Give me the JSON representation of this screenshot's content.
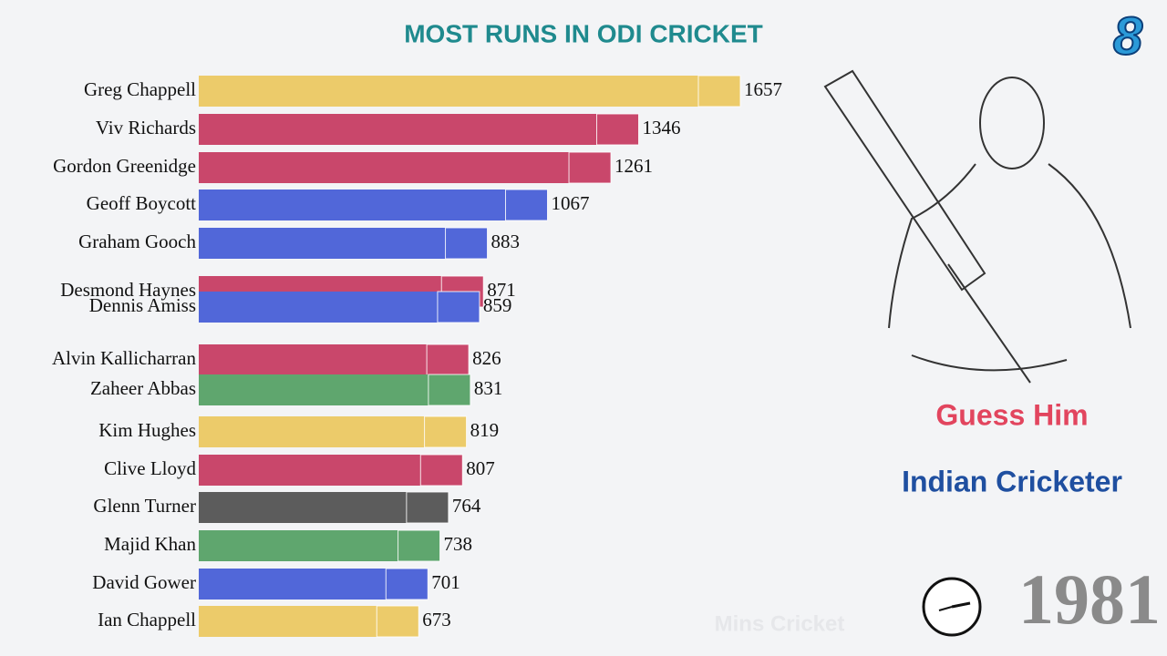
{
  "chart_data": {
    "type": "bar",
    "orientation": "horizontal",
    "title": "MOST RUNS IN ODI CRICKET",
    "categories": [
      "Greg Chappell",
      "Viv Richards",
      "Gordon Greenidge",
      "Geoff Boycott",
      "Graham Gooch",
      "Desmond Haynes",
      "Dennis Amiss",
      "Alvin Kallicharran",
      "Zaheer Abbas",
      "Kim Hughes",
      "Clive Lloyd",
      "Glenn Turner",
      "Majid Khan",
      "David Gower",
      "Ian Chappell"
    ],
    "values": [
      1657,
      1346,
      1261,
      1067,
      883,
      871,
      859,
      826,
      831,
      819,
      807,
      764,
      738,
      701,
      673
    ],
    "colors": [
      "#eccb6a",
      "#c9476b",
      "#c9476b",
      "#5167d9",
      "#5167d9",
      "#c9476b",
      "#5167d9",
      "#c9476b",
      "#5fa66e",
      "#eccb6a",
      "#c9476b",
      "#5c5c5c",
      "#5fa66e",
      "#5167d9",
      "#eccb6a"
    ]
  },
  "overlay": {
    "rank": "8",
    "question": "Guess Him",
    "hint": "Indian Cricketer",
    "year": "1981",
    "watermark": "Mins Cricket"
  }
}
